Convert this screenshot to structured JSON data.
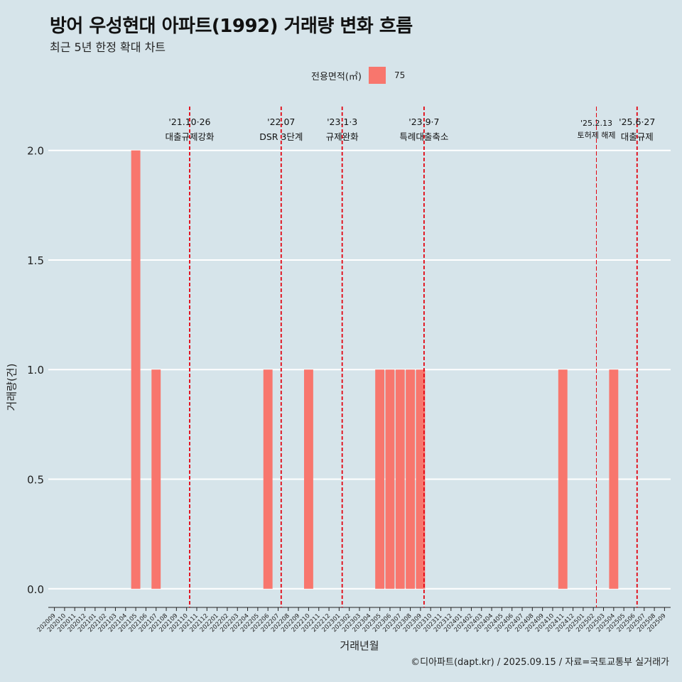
{
  "title": "방어 우성현대 아파트(1992) 거래량 변화 흐름",
  "subtitle": "최근 5년 한정 확대 차트",
  "caption": "©디아파트(dapt.kr) / 2025.09.15 / 자료=국토교통부 실거래가",
  "colors": {
    "background": "#d6e4ea",
    "bar": "#f8766d",
    "event_line": "#e3000f",
    "grid": "#ffffff"
  },
  "chart_data": {
    "type": "bar",
    "title": "방어 우성현대 아파트(1992) 거래량 변화 흐름",
    "subtitle": "최근 5년 한정 확대 차트",
    "xlabel": "거래년월",
    "ylabel": "거래량(건)",
    "ylim": [
      -0.085,
      2.2
    ],
    "yticks": [
      0.0,
      0.5,
      1.0,
      1.5,
      2.0
    ],
    "ytick_labels": [
      "0.0",
      "0.5",
      "1.0",
      "1.5",
      "2.0"
    ],
    "legend_title": "전용면적(㎡)",
    "legend_position": "top",
    "categories": [
      "202009",
      "202010",
      "202011",
      "202012",
      "202101",
      "202102",
      "202103",
      "202104",
      "202105",
      "202106",
      "202107",
      "202108",
      "202109",
      "202110",
      "202111",
      "202112",
      "202201",
      "202202",
      "202203",
      "202204",
      "202205",
      "202206",
      "202207",
      "202208",
      "202209",
      "202210",
      "202211",
      "202212",
      "202301",
      "202302",
      "202303",
      "202304",
      "202305",
      "202306",
      "202307",
      "202308",
      "202309",
      "202310",
      "202311",
      "202312",
      "202401",
      "202402",
      "202403",
      "202404",
      "202405",
      "202406",
      "202407",
      "202408",
      "202409",
      "202410",
      "202411",
      "202412",
      "202501",
      "202502",
      "202503",
      "202504",
      "202505",
      "202506",
      "202507",
      "202508",
      "202509"
    ],
    "series": [
      {
        "name": "75",
        "values": [
          0,
          0,
          0,
          0,
          0,
          0,
          0,
          0,
          2,
          0,
          1,
          0,
          0,
          0,
          0,
          0,
          0,
          0,
          0,
          0,
          0,
          1,
          0,
          0,
          0,
          1,
          0,
          0,
          0,
          0,
          0,
          0,
          1,
          1,
          1,
          1,
          1,
          0,
          0,
          0,
          0,
          0,
          0,
          0,
          0,
          0,
          0,
          0,
          0,
          0,
          1,
          0,
          0,
          0,
          0,
          1,
          0,
          0,
          0,
          0,
          0
        ]
      }
    ],
    "events": [
      {
        "date_label": "'21.10·26",
        "text": "대출규제강화",
        "month_index": 13.3,
        "style": "dashed"
      },
      {
        "date_label": "'22.07",
        "text": "DSR 3단계",
        "month_index": 22.3,
        "style": "dashed"
      },
      {
        "date_label": "'23.1·3",
        "text": "규제완화",
        "month_index": 28.3,
        "style": "dashed"
      },
      {
        "date_label": "'23.9·7",
        "text": "특례대출축소",
        "month_index": 36.35,
        "style": "dashed"
      },
      {
        "date_label": "'25.2.13",
        "text": "토허제 해제",
        "month_index": 53.3,
        "style": "thin"
      },
      {
        "date_label": "'25.6·27",
        "text": "대출규제",
        "month_index": 57.3,
        "style": "dashed"
      }
    ]
  }
}
